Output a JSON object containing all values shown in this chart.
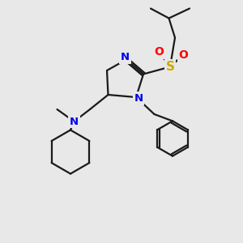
{
  "bg_color": "#e8e8e8",
  "bond_color": "#1a1a1a",
  "N_color": "#0000ee",
  "O_color": "#ff0000",
  "S_color": "#ccaa00",
  "bond_width": 1.6,
  "fig_width": 3.0,
  "fig_height": 3.0,
  "dpi": 100,
  "xlim": [
    0,
    10
  ],
  "ylim": [
    0,
    10
  ]
}
